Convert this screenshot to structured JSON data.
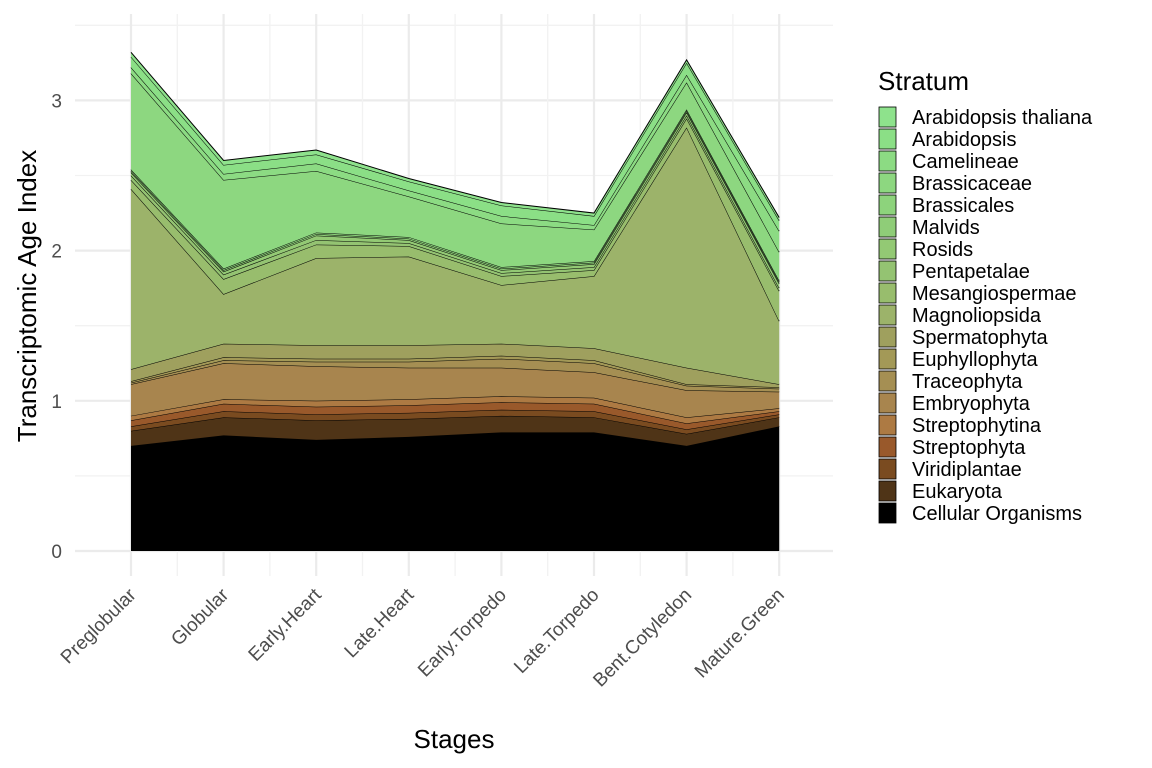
{
  "chart_data": {
    "type": "area",
    "xlabel": "Stages",
    "ylabel": "Transcriptomic Age Index",
    "ylim": [
      0,
      3.5
    ],
    "y_ticks": [
      0,
      1,
      2,
      3
    ],
    "grid": true,
    "stacked": true,
    "legend": {
      "title": "Stratum",
      "placement": "right"
    },
    "categories": [
      "Preglobular",
      "Globular",
      "Early.Heart",
      "Late.Heart",
      "Early.Torpedo",
      "Late.Torpedo",
      "Bent.Cotyledon",
      "Mature.Green"
    ],
    "series": [
      {
        "name": "Cellular Organisms",
        "color": "#000000",
        "values": [
          0.7,
          0.77,
          0.74,
          0.76,
          0.79,
          0.79,
          0.7,
          0.83
        ]
      },
      {
        "name": "Eukaryota",
        "color": "#4f3417",
        "values": [
          0.1,
          0.12,
          0.13,
          0.12,
          0.11,
          0.1,
          0.08,
          0.06
        ]
      },
      {
        "name": "Viridiplantae",
        "color": "#7a4b20",
        "values": [
          0.03,
          0.04,
          0.04,
          0.04,
          0.04,
          0.04,
          0.03,
          0.02
        ]
      },
      {
        "name": "Streptophyta",
        "color": "#99592b",
        "values": [
          0.04,
          0.05,
          0.05,
          0.05,
          0.05,
          0.05,
          0.04,
          0.02
        ]
      },
      {
        "name": "Streptophytina",
        "color": "#ad7a43",
        "values": [
          0.03,
          0.03,
          0.04,
          0.04,
          0.04,
          0.04,
          0.04,
          0.02
        ]
      },
      {
        "name": "Embryophyta",
        "color": "#a8854e",
        "values": [
          0.21,
          0.24,
          0.23,
          0.21,
          0.19,
          0.17,
          0.18,
          0.11
        ]
      },
      {
        "name": "Traceophyta",
        "color": "#a58f53",
        "values": [
          0.01,
          0.02,
          0.03,
          0.04,
          0.06,
          0.06,
          0.03,
          0.02
        ]
      },
      {
        "name": "Euphyllophyta",
        "color": "#a39957",
        "values": [
          0.01,
          0.02,
          0.02,
          0.02,
          0.02,
          0.02,
          0.01,
          0.01
        ]
      },
      {
        "name": "Spermatophyta",
        "color": "#9fa05e",
        "values": [
          0.08,
          0.09,
          0.09,
          0.09,
          0.08,
          0.08,
          0.11,
          0.02
        ]
      },
      {
        "name": "Magnoliopsida",
        "color": "#9cb36a",
        "values": [
          1.2,
          0.33,
          0.58,
          0.59,
          0.39,
          0.48,
          1.6,
          0.42
        ]
      },
      {
        "name": "Mesangiospermae",
        "color": "#98bd6d",
        "values": [
          0.06,
          0.1,
          0.09,
          0.07,
          0.06,
          0.04,
          0.06,
          0.2
        ]
      },
      {
        "name": "Pentapetalae",
        "color": "#94c372",
        "values": [
          0.03,
          0.03,
          0.03,
          0.02,
          0.02,
          0.02,
          0.02,
          0.02
        ]
      },
      {
        "name": "Rosids",
        "color": "#93c974",
        "values": [
          0.02,
          0.02,
          0.03,
          0.02,
          0.02,
          0.02,
          0.02,
          0.03
        ]
      },
      {
        "name": "Malvids",
        "color": "#8fcd78",
        "values": [
          0.01,
          0.01,
          0.01,
          0.01,
          0.01,
          0.01,
          0.01,
          0.01
        ]
      },
      {
        "name": "Brassicales",
        "color": "#8dd37c",
        "values": [
          0.01,
          0.01,
          0.01,
          0.01,
          0.01,
          0.01,
          0.01,
          0.01
        ]
      },
      {
        "name": "Brassicaceae",
        "color": "#8dd780",
        "values": [
          0.64,
          0.59,
          0.41,
          0.27,
          0.29,
          0.21,
          0.18,
          0.19
        ]
      },
      {
        "name": "Camelineae",
        "color": "#8cdb83",
        "values": [
          0.04,
          0.04,
          0.05,
          0.04,
          0.05,
          0.03,
          0.05,
          0.14
        ]
      },
      {
        "name": "Arabidopsis",
        "color": "#8bdf86",
        "values": [
          0.07,
          0.06,
          0.06,
          0.06,
          0.07,
          0.06,
          0.08,
          0.07
        ]
      },
      {
        "name": "Arabidopsis thaliana",
        "color": "#8ee28c",
        "values": [
          0.03,
          0.03,
          0.03,
          0.02,
          0.02,
          0.02,
          0.02,
          0.02
        ]
      }
    ],
    "legend_order": [
      "Arabidopsis thaliana",
      "Arabidopsis",
      "Camelineae",
      "Brassicaceae",
      "Brassicales",
      "Malvids",
      "Rosids",
      "Pentapetalae",
      "Mesangiospermae",
      "Magnoliopsida",
      "Spermatophyta",
      "Euphyllophyta",
      "Traceophyta",
      "Embryophyta",
      "Streptophytina",
      "Streptophyta",
      "Viridiplantae",
      "Eukaryota",
      "Cellular Organisms"
    ]
  }
}
